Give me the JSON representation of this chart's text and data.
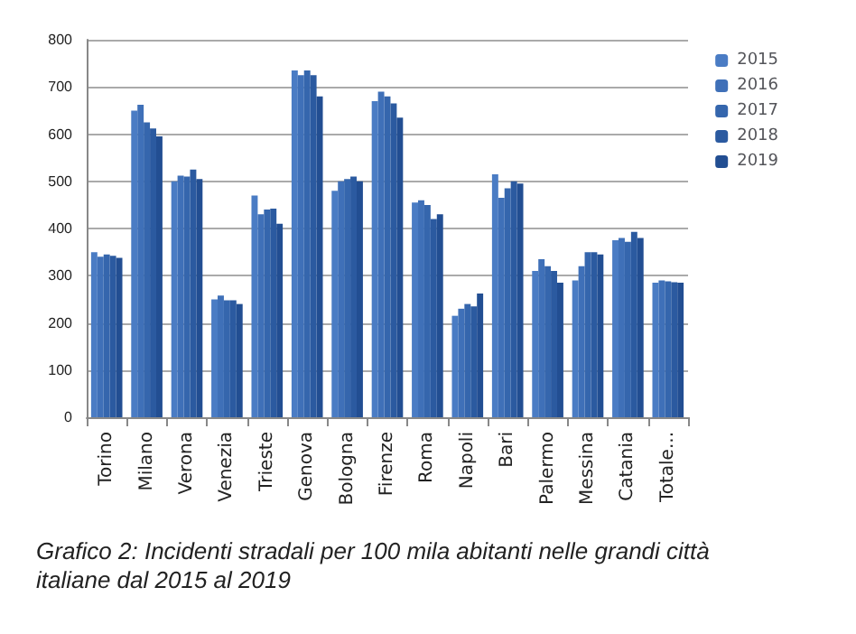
{
  "chart_data": {
    "type": "bar",
    "categories": [
      "Torino",
      "Milano",
      "Verona",
      "Venezia",
      "Trieste",
      "Genova",
      "Bologna",
      "Firenze",
      "Roma",
      "Napoli",
      "Bari",
      "Palermo",
      "Messina",
      "Catania",
      "Totale..."
    ],
    "series": [
      {
        "name": "2015",
        "color": "#4a7cc4",
        "values": [
          350,
          650,
          500,
          250,
          470,
          735,
          480,
          670,
          455,
          215,
          515,
          310,
          290,
          375,
          285
        ]
      },
      {
        "name": "2016",
        "color": "#3f70b8",
        "values": [
          340,
          662,
          512,
          258,
          430,
          725,
          500,
          690,
          460,
          230,
          465,
          335,
          320,
          380,
          290
        ]
      },
      {
        "name": "2017",
        "color": "#3566ad",
        "values": [
          345,
          625,
          510,
          248,
          440,
          735,
          505,
          680,
          450,
          240,
          485,
          320,
          350,
          372,
          288
        ]
      },
      {
        "name": "2018",
        "color": "#2b5aa0",
        "values": [
          342,
          612,
          525,
          248,
          442,
          725,
          510,
          665,
          420,
          235,
          500,
          310,
          350,
          393,
          286
        ]
      },
      {
        "name": "2019",
        "color": "#224e92",
        "values": [
          338,
          595,
          505,
          240,
          410,
          680,
          500,
          635,
          430,
          262,
          495,
          285,
          345,
          380,
          285
        ]
      }
    ],
    "ylim": [
      0,
      800
    ],
    "yticks": [
      0,
      100,
      200,
      300,
      400,
      500,
      600,
      700,
      800
    ],
    "grid": "y",
    "legend": "top right",
    "annotations": [
      "Grafico 2: Incidenti stradali per 100 mila abitanti nelle grandi città italiane dal 2015 al 2019"
    ]
  }
}
